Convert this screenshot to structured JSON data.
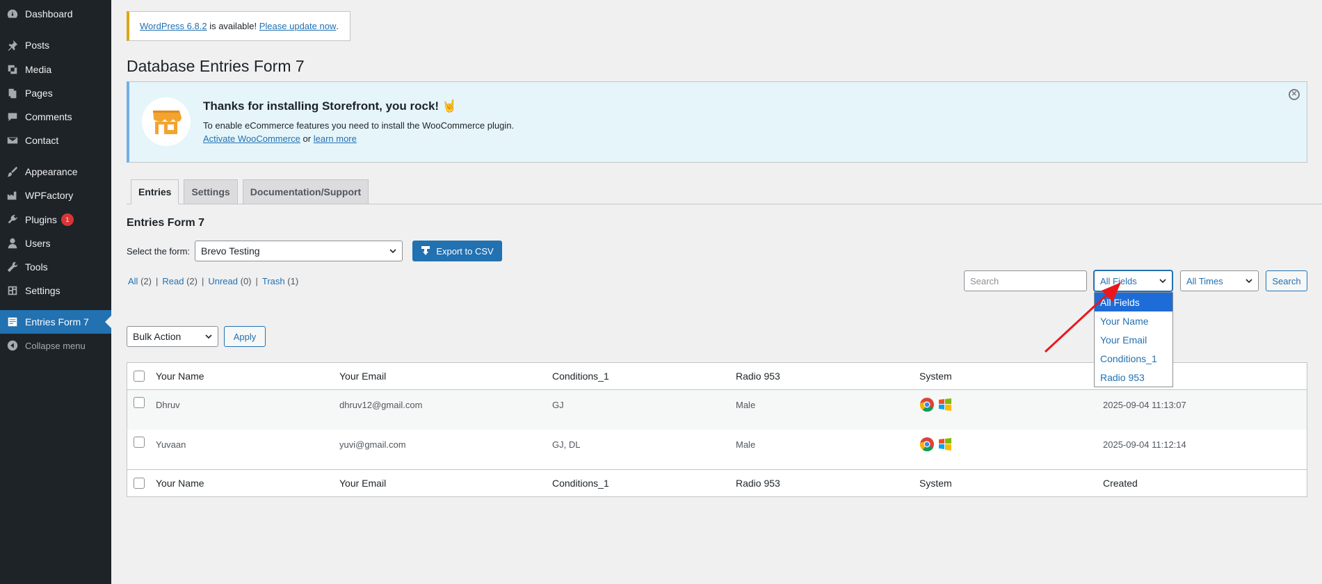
{
  "sidebar": {
    "items": [
      {
        "label": "Dashboard",
        "icon": "dashboard-icon"
      },
      {
        "label": "Posts",
        "icon": "pushpin-icon"
      },
      {
        "label": "Media",
        "icon": "media-icon"
      },
      {
        "label": "Pages",
        "icon": "pages-icon"
      },
      {
        "label": "Comments",
        "icon": "comment-icon"
      },
      {
        "label": "Contact",
        "icon": "envelope-icon"
      },
      {
        "label": "Appearance",
        "icon": "brush-icon"
      },
      {
        "label": "WPFactory",
        "icon": "factory-icon"
      },
      {
        "label": "Plugins",
        "icon": "plugin-icon",
        "badge": "1"
      },
      {
        "label": "Users",
        "icon": "user-icon"
      },
      {
        "label": "Tools",
        "icon": "wrench-icon"
      },
      {
        "label": "Settings",
        "icon": "settings-icon"
      },
      {
        "label": "Entries Form 7",
        "icon": "form-icon"
      },
      {
        "label": "Collapse menu",
        "icon": "collapse-icon"
      }
    ]
  },
  "update_notice": {
    "version_link": "WordPress 6.8.2",
    "middle": " is available! ",
    "update_link": "Please update now",
    "end": "."
  },
  "page_title": "Database Entries Form 7",
  "storefront_notice": {
    "title": "Thanks for installing Storefront, you rock! 🤘",
    "text": "To enable eCommerce features you need to install the WooCommerce plugin.",
    "activate_link": "Activate WooCommerce",
    "or": " or ",
    "learn_link": "learn more"
  },
  "tabs": [
    "Entries",
    "Settings",
    "Documentation/Support"
  ],
  "section_title": "Entries Form 7",
  "form_select": {
    "label": "Select the form:",
    "value": "Brevo Testing"
  },
  "export_button": "Export to CSV",
  "filters": {
    "all": "All",
    "all_count": "(2)",
    "read": "Read",
    "read_count": "(2)",
    "unread": "Unread",
    "unread_count": "(0)",
    "trash": "Trash",
    "trash_count": "(1)",
    "sep": "|"
  },
  "search": {
    "placeholder": "Search",
    "fields_value": "All Fields",
    "times_value": "All Times",
    "button": "Search"
  },
  "fields_dropdown": [
    "All Fields",
    "Your Name",
    "Your Email",
    "Conditions_1",
    "Radio 953"
  ],
  "bulk": {
    "value": "Bulk Action",
    "apply": "Apply"
  },
  "table": {
    "columns": [
      "Your Name",
      "Your Email",
      "Conditions_1",
      "Radio 953",
      "System",
      "Created"
    ],
    "rows": [
      {
        "name": "Dhruv",
        "email": "dhruv12@gmail.com",
        "conditions": "GJ",
        "radio": "Male",
        "system": [
          "chrome-icon",
          "windows-icon"
        ],
        "created": "2025-09-04 11:13:07"
      },
      {
        "name": "Yuvaan",
        "email": "yuvi@gmail.com",
        "conditions": "GJ, DL",
        "radio": "Male",
        "system": [
          "chrome-icon",
          "windows-icon"
        ],
        "created": "2025-09-04 11:12:14"
      }
    ]
  },
  "colors": {
    "sidebar_bg": "#1d2327",
    "accent": "#2271b1",
    "annotation_arrow": "#e8181c"
  }
}
